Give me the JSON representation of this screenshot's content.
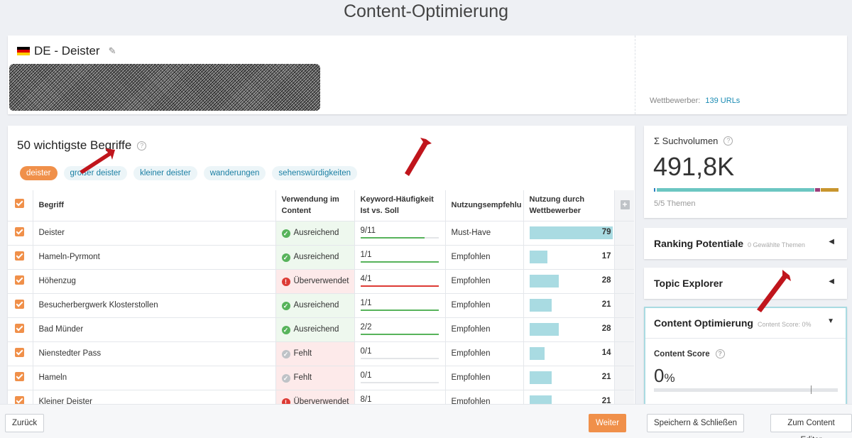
{
  "page_title": "Content-Optimierung",
  "project": {
    "name": "DE - Deister",
    "competitors_label": "Wettbewerber:",
    "competitors_link": "139 URLs"
  },
  "terms_section": {
    "title": "50 wichtigste Begriffe",
    "tags": [
      {
        "label": "deister",
        "active": true
      },
      {
        "label": "großer deister",
        "active": false
      },
      {
        "label": "kleiner deister",
        "active": false
      },
      {
        "label": "wanderungen",
        "active": false
      },
      {
        "label": "sehenswürdigkeiten",
        "active": false
      }
    ],
    "columns": {
      "term": "Begriff",
      "usage_line1": "Verwendung im",
      "usage_line2": "Content",
      "freq_line1": "Keyword-Häufigkeit",
      "freq_line2": "Ist vs. Soll",
      "recommendation": "Nutzungsempfehlu",
      "comp_line1": "Nutzung durch",
      "comp_line2": "Wettbewerber"
    },
    "rows": [
      {
        "term": "Deister",
        "usage": "Ausreichend",
        "status": "ok",
        "freq": "9/11",
        "freq_ratio": 0.82,
        "rec": "Must-Have",
        "comp": 79
      },
      {
        "term": "Hameln-Pyrmont",
        "usage": "Ausreichend",
        "status": "ok",
        "freq": "1/1",
        "freq_ratio": 1.0,
        "rec": "Empfohlen",
        "comp": 17
      },
      {
        "term": "Höhenzug",
        "usage": "Überverwendet",
        "status": "over",
        "freq": "4/1",
        "freq_ratio": 1.0,
        "rec": "Empfohlen",
        "comp": 28
      },
      {
        "term": "Besucherbergwerk Klosterstollen",
        "usage": "Ausreichend",
        "status": "ok",
        "freq": "1/1",
        "freq_ratio": 1.0,
        "rec": "Empfohlen",
        "comp": 21
      },
      {
        "term": "Bad Münder",
        "usage": "Ausreichend",
        "status": "ok",
        "freq": "2/2",
        "freq_ratio": 1.0,
        "rec": "Empfohlen",
        "comp": 28
      },
      {
        "term": "Nienstedter Pass",
        "usage": "Fehlt",
        "status": "miss",
        "freq": "0/1",
        "freq_ratio": 0,
        "rec": "Empfohlen",
        "comp": 14
      },
      {
        "term": "Hameln",
        "usage": "Fehlt",
        "status": "miss",
        "freq": "0/1",
        "freq_ratio": 0,
        "rec": "Empfohlen",
        "comp": 21
      },
      {
        "term": "Kleiner Deister",
        "usage": "Überverwendet",
        "status": "over",
        "freq": "8/1",
        "freq_ratio": 1.0,
        "rec": "Empfohlen",
        "comp": 21
      }
    ],
    "comp_max": 79
  },
  "search_volume": {
    "title": "Σ Suchvolumen",
    "value": "491,8K",
    "topics": "5/5 Themen",
    "bar_colors": [
      "#2a7fc1",
      "#6cc6c2",
      "#9b3d7a",
      "#c8952e"
    ]
  },
  "ranking": {
    "title": "Ranking Potentiale",
    "subtitle": "0 Gewählte Themen"
  },
  "topic_explorer": {
    "title": "Topic Explorer"
  },
  "content_optimization": {
    "title": "Content Optimierung",
    "subtitle": "Content Score: 0%",
    "score_label": "Content Score",
    "score_value": "0",
    "score_unit": "%"
  },
  "footer": {
    "back": "Zurück",
    "next": "Weiter",
    "save_close": "Speichern & Schließen",
    "to_editor": "Zum Content Editor"
  },
  "colors": {
    "accent": "#f0904a",
    "ok": "#57b35b",
    "over": "#dd3b35",
    "link": "#1a8bb3",
    "arrow": "#c0151c"
  }
}
